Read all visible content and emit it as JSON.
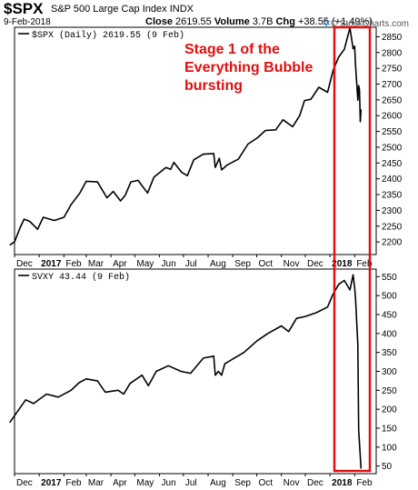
{
  "header": {
    "symbol": "$SPX",
    "name": "S&P 500 Large Cap Index",
    "exchange": "INDX",
    "date": "9-Feb-2018",
    "close_label": "Close",
    "close_value": "2619.55",
    "volume_label": "Volume",
    "volume_value": "3.7B",
    "chg_label": "Chg",
    "chg_value": "+38.55 (+1.49%)",
    "watermark": "© StockCharts.com"
  },
  "colors": {
    "line": "#000000",
    "annotation": "#e01010",
    "watermark_star": "#1f6fb2"
  },
  "annotation": {
    "text": [
      "Stage 1 of the",
      "Everything Bubble",
      "bursting"
    ]
  },
  "chart_data": [
    {
      "type": "line",
      "legend": "$SPX (Daily) 2619.55 (9 Feb)",
      "ylim": [
        2160,
        2880
      ],
      "yticks": [
        2200,
        2250,
        2300,
        2350,
        2400,
        2450,
        2500,
        2550,
        2600,
        2650,
        2700,
        2750,
        2800,
        2850
      ],
      "xlim": [
        "2016-12-01",
        "2018-02-28"
      ],
      "xticks": [
        {
          "label": "Dec",
          "date": "2016-12-01"
        },
        {
          "label": "2017",
          "date": "2017-01-01",
          "bold": true
        },
        {
          "label": "Feb",
          "date": "2017-02-01"
        },
        {
          "label": "Mar",
          "date": "2017-03-01"
        },
        {
          "label": "Apr",
          "date": "2017-04-01"
        },
        {
          "label": "May",
          "date": "2017-05-01"
        },
        {
          "label": "Jun",
          "date": "2017-06-01"
        },
        {
          "label": "Jul",
          "date": "2017-07-01"
        },
        {
          "label": "Aug",
          "date": "2017-08-01"
        },
        {
          "label": "Sep",
          "date": "2017-09-01"
        },
        {
          "label": "Oct",
          "date": "2017-10-01"
        },
        {
          "label": "Nov",
          "date": "2017-11-01"
        },
        {
          "label": "Dec",
          "date": "2017-12-01"
        },
        {
          "label": "2018",
          "date": "2018-01-01",
          "bold": true
        },
        {
          "label": "Feb",
          "date": "2018-02-01"
        }
      ],
      "series": [
        {
          "x": [
            "2016-11-25",
            "2016-12-01",
            "2016-12-08",
            "2016-12-13",
            "2016-12-20",
            "2016-12-30",
            "2017-01-06",
            "2017-01-20",
            "2017-02-01",
            "2017-02-10",
            "2017-02-21",
            "2017-03-01",
            "2017-03-15",
            "2017-03-27",
            "2017-04-04",
            "2017-04-13",
            "2017-04-19",
            "2017-04-26",
            "2017-05-05",
            "2017-05-17",
            "2017-05-25",
            "2017-06-09",
            "2017-06-15",
            "2017-06-19",
            "2017-06-29",
            "2017-07-06",
            "2017-07-14",
            "2017-07-26",
            "2017-08-08",
            "2017-08-10",
            "2017-08-15",
            "2017-08-18",
            "2017-08-25",
            "2017-09-08",
            "2017-09-20",
            "2017-10-02",
            "2017-10-12",
            "2017-10-25",
            "2017-11-03",
            "2017-11-15",
            "2017-11-24",
            "2017-11-30",
            "2017-12-08",
            "2017-12-18",
            "2017-12-29",
            "2018-01-05",
            "2018-01-12",
            "2018-01-19",
            "2018-01-26",
            "2018-01-30",
            "2018-02-01",
            "2018-02-02",
            "2018-02-05",
            "2018-02-06",
            "2018-02-07",
            "2018-02-08",
            "2018-02-09"
          ],
          "y": [
            2190,
            2200,
            2245,
            2272,
            2265,
            2240,
            2278,
            2268,
            2278,
            2318,
            2355,
            2392,
            2390,
            2340,
            2360,
            2330,
            2348,
            2390,
            2395,
            2355,
            2405,
            2436,
            2430,
            2452,
            2420,
            2410,
            2460,
            2478,
            2480,
            2436,
            2465,
            2428,
            2444,
            2462,
            2510,
            2530,
            2553,
            2555,
            2587,
            2565,
            2600,
            2648,
            2652,
            2690,
            2674,
            2745,
            2786,
            2810,
            2878,
            2812,
            2820,
            2762,
            2649,
            2695,
            2682,
            2581,
            2620
          ]
        }
      ]
    },
    {
      "type": "line",
      "legend": "SVXY 43.44 (9 Feb)",
      "ylim": [
        30,
        570
      ],
      "yticks": [
        50,
        100,
        150,
        200,
        250,
        300,
        350,
        400,
        450,
        500,
        550
      ],
      "xlim": [
        "2016-12-01",
        "2018-02-28"
      ],
      "xticks": [
        {
          "label": "Dec",
          "date": "2016-12-01"
        },
        {
          "label": "2017",
          "date": "2017-01-01",
          "bold": true
        },
        {
          "label": "Feb",
          "date": "2017-02-01"
        },
        {
          "label": "Mar",
          "date": "2017-03-01"
        },
        {
          "label": "Apr",
          "date": "2017-04-01"
        },
        {
          "label": "May",
          "date": "2017-05-01"
        },
        {
          "label": "Jun",
          "date": "2017-06-01"
        },
        {
          "label": "Jul",
          "date": "2017-07-01"
        },
        {
          "label": "Aug",
          "date": "2017-08-01"
        },
        {
          "label": "Sep",
          "date": "2017-09-01"
        },
        {
          "label": "Oct",
          "date": "2017-10-01"
        },
        {
          "label": "Nov",
          "date": "2017-11-01"
        },
        {
          "label": "Dec",
          "date": "2017-12-01"
        },
        {
          "label": "2018",
          "date": "2018-01-01",
          "bold": true
        },
        {
          "label": "Feb",
          "date": "2018-02-01"
        }
      ],
      "series": [
        {
          "x": [
            "2016-11-25",
            "2016-12-05",
            "2016-12-15",
            "2016-12-25",
            "2017-01-10",
            "2017-01-25",
            "2017-02-10",
            "2017-02-20",
            "2017-03-01",
            "2017-03-15",
            "2017-03-25",
            "2017-04-10",
            "2017-04-17",
            "2017-04-25",
            "2017-05-10",
            "2017-05-18",
            "2017-05-28",
            "2017-06-12",
            "2017-06-28",
            "2017-07-10",
            "2017-07-26",
            "2017-08-08",
            "2017-08-10",
            "2017-08-14",
            "2017-08-18",
            "2017-08-22",
            "2017-08-30",
            "2017-09-15",
            "2017-10-01",
            "2017-10-15",
            "2017-11-01",
            "2017-11-10",
            "2017-11-20",
            "2017-12-01",
            "2017-12-15",
            "2017-12-29",
            "2018-01-05",
            "2018-01-12",
            "2018-01-19",
            "2018-01-26",
            "2018-01-30",
            "2018-02-01",
            "2018-02-02",
            "2018-02-05",
            "2018-02-06",
            "2018-02-07",
            "2018-02-09"
          ],
          "y": [
            165,
            195,
            225,
            215,
            240,
            232,
            250,
            270,
            280,
            275,
            245,
            250,
            240,
            268,
            290,
            262,
            300,
            315,
            300,
            295,
            335,
            340,
            290,
            300,
            290,
            320,
            330,
            350,
            380,
            400,
            420,
            405,
            440,
            445,
            455,
            470,
            505,
            530,
            540,
            515,
            555,
            520,
            495,
            370,
            145,
            110,
            43.44
          ]
        }
      ]
    }
  ]
}
